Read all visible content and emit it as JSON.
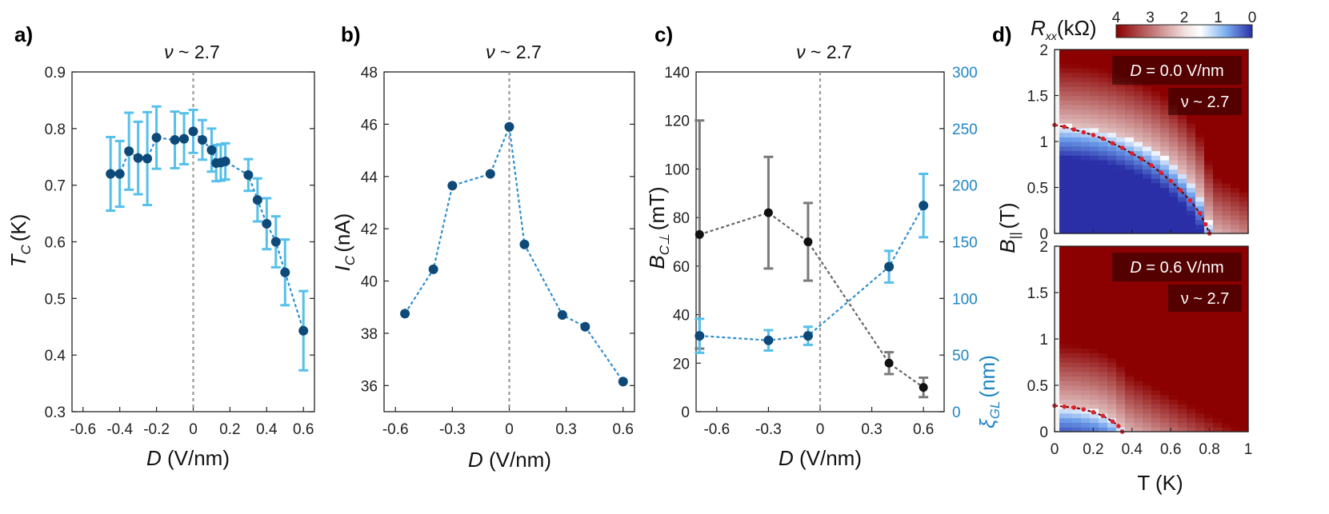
{
  "colors": {
    "marker": "#0d4a7a",
    "errbar_blue": "#56c0ea",
    "line_blue": "#2f8fcf",
    "gray_err": "#7a7a7a",
    "black_marker": "#111111",
    "right_axis": "#1f85c4",
    "map_red": "#8b0000",
    "map_blue": "#2a2fa8",
    "critical_dots": "#e0202a"
  },
  "chart_data": [
    {
      "panel": "a)",
      "type": "scatter",
      "title_prefix": "ν",
      "title_suffix": "~ 2.7",
      "xlabel_sym": "D",
      "xlabel_unit": "(V/nm)",
      "ylabel_sym": "T",
      "ylabel_sub": "C",
      "ylabel_unit": "(K)",
      "xlim": [
        -0.66,
        0.66
      ],
      "ylim": [
        0.3,
        0.9
      ],
      "xticks": [
        -0.6,
        -0.4,
        -0.2,
        0,
        0.2,
        0.4,
        0.6
      ],
      "xtick_labels": [
        "-0.6",
        "-0.4",
        "-0.2",
        "0",
        "0.2",
        "0.4",
        "0.6"
      ],
      "yticks": [
        0.3,
        0.4,
        0.5,
        0.6,
        0.7,
        0.8,
        0.9
      ],
      "ytick_labels": [
        "0.3",
        "0.4",
        "0.5",
        "0.6",
        "0.7",
        "0.8",
        "0.9"
      ],
      "vline_x": 0,
      "series": [
        {
          "name": "Tc",
          "x": [
            -0.45,
            -0.4,
            -0.35,
            -0.3,
            -0.25,
            -0.2,
            -0.1,
            -0.05,
            0,
            0.05,
            0.1,
            0.125,
            0.15,
            0.175,
            0.3,
            0.35,
            0.4,
            0.45,
            0.5,
            0.6
          ],
          "y": [
            0.72,
            0.72,
            0.76,
            0.748,
            0.747,
            0.784,
            0.78,
            0.782,
            0.795,
            0.78,
            0.762,
            0.739,
            0.74,
            0.742,
            0.718,
            0.674,
            0.632,
            0.6,
            0.546,
            0.443
          ],
          "err": [
            0.065,
            0.058,
            0.068,
            0.064,
            0.082,
            0.055,
            0.05,
            0.045,
            0.038,
            0.035,
            0.038,
            0.032,
            0.032,
            0.032,
            0.028,
            0.038,
            0.045,
            0.045,
            0.058,
            0.07
          ]
        }
      ]
    },
    {
      "panel": "b)",
      "type": "line",
      "title_prefix": "ν",
      "title_suffix": "~ 2.7",
      "xlabel_sym": "D",
      "xlabel_unit": "(V/nm)",
      "ylabel_sym": "I",
      "ylabel_sub": "C",
      "ylabel_unit": "(nA)",
      "xlim": [
        -0.66,
        0.66
      ],
      "ylim": [
        35,
        48
      ],
      "xticks": [
        -0.6,
        -0.3,
        0,
        0.3,
        0.6
      ],
      "xtick_labels": [
        "-0.6",
        "-0.3",
        "0",
        "0.3",
        "0.6"
      ],
      "yticks": [
        36,
        38,
        40,
        42,
        44,
        46,
        48
      ],
      "ytick_labels": [
        "36",
        "38",
        "40",
        "42",
        "44",
        "46",
        "48"
      ],
      "vline_x": 0,
      "series": [
        {
          "name": "Ic",
          "x": [
            -0.55,
            -0.4,
            -0.3,
            -0.1,
            0,
            0.08,
            0.28,
            0.4,
            0.6
          ],
          "y": [
            38.75,
            40.45,
            43.65,
            44.1,
            45.9,
            41.4,
            38.7,
            38.25,
            36.15
          ]
        }
      ]
    },
    {
      "panel": "c)",
      "type": "scatter",
      "title_prefix": "ν",
      "title_suffix": "~ 2.7",
      "xlabel_sym": "D",
      "xlabel_unit": "(V/nm)",
      "ylabel_sym": "B",
      "ylabel_sub": "C⊥",
      "ylabel_unit": "(mT)",
      "ylabel_right_sym": "ξ",
      "ylabel_right_sub": "GL",
      "ylabel_right_unit": "(nm)",
      "xlim": [
        -0.72,
        0.72
      ],
      "ylim": [
        0,
        140
      ],
      "ylim_right": [
        0,
        300
      ],
      "xticks": [
        -0.6,
        -0.3,
        0,
        0.3,
        0.6
      ],
      "xtick_labels": [
        "-0.6",
        "-0.3",
        "0",
        "0.3",
        "0.6"
      ],
      "yticks": [
        0,
        20,
        40,
        60,
        80,
        100,
        120,
        140
      ],
      "ytick_labels": [
        "0",
        "20",
        "40",
        "60",
        "80",
        "100",
        "120",
        "140"
      ],
      "yticks_right": [
        0,
        50,
        100,
        150,
        200,
        250,
        300
      ],
      "ytick_labels_right": [
        "0",
        "50",
        "100",
        "150",
        "200",
        "250",
        "300"
      ],
      "vline_x": 0,
      "series": [
        {
          "name": "Bc_perp",
          "axis": "left",
          "x": [
            -0.7,
            -0.3,
            -0.07,
            0.4,
            0.6
          ],
          "y": [
            73,
            82,
            70,
            20,
            10
          ],
          "err": [
            47,
            23,
            16,
            4.5,
            4
          ]
        },
        {
          "name": "xi_GL",
          "axis": "right",
          "x": [
            -0.7,
            -0.3,
            -0.07,
            0.4,
            0.6
          ],
          "y": [
            67,
            63,
            67,
            128,
            182
          ],
          "err": [
            15,
            9,
            8,
            14,
            28
          ]
        }
      ]
    },
    {
      "panel": "d)",
      "type": "heatmap",
      "colorbar_label_sym": "R",
      "colorbar_label_sub": "xx",
      "colorbar_label_unit": "(kΩ)",
      "colorbar_ticks": [
        4,
        3,
        2,
        1,
        0
      ],
      "colorbar_tick_labels": [
        "4",
        "3",
        "2",
        "1",
        "0"
      ],
      "xlabel": "T (K)",
      "ylabel_sym": "B",
      "ylabel_sub": "||",
      "ylabel_unit": "(T)",
      "xlim": [
        0,
        1
      ],
      "ylim": [
        0,
        2
      ],
      "xticks": [
        0,
        0.2,
        0.4,
        0.6,
        0.8,
        1
      ],
      "xtick_labels": [
        "0",
        "0.2",
        "0.4",
        "0.6",
        "0.8",
        "1"
      ],
      "yticks": [
        0,
        0.5,
        1,
        1.5,
        2
      ],
      "ytick_labels": [
        "0",
        "0.5",
        "1",
        "1.5",
        "2"
      ],
      "maps": [
        {
          "label_sym": "D",
          "label_val": "= 0.0 V/nm",
          "nu_label": "ν ~ 2.7",
          "Tc": 0.8,
          "Bc0": 1.18,
          "critical_T": [
            0.0,
            0.05,
            0.1,
            0.15,
            0.2,
            0.25,
            0.3,
            0.35,
            0.4,
            0.45,
            0.5,
            0.55,
            0.6,
            0.65,
            0.7,
            0.75,
            0.78,
            0.8
          ],
          "critical_B": [
            1.18,
            1.16,
            1.13,
            1.1,
            1.07,
            1.03,
            0.98,
            0.93,
            0.87,
            0.81,
            0.74,
            0.66,
            0.57,
            0.47,
            0.36,
            0.22,
            0.1,
            0.0
          ]
        },
        {
          "label_sym": "D",
          "label_val": "= 0.6 V/nm",
          "nu_label": "ν ~ 2.7",
          "Tc": 0.35,
          "Bc0": 0.28,
          "critical_T": [
            0.0,
            0.05,
            0.1,
            0.15,
            0.2,
            0.25,
            0.3,
            0.33,
            0.35
          ],
          "critical_B": [
            0.28,
            0.27,
            0.26,
            0.24,
            0.21,
            0.17,
            0.11,
            0.06,
            0.0
          ]
        }
      ]
    }
  ]
}
